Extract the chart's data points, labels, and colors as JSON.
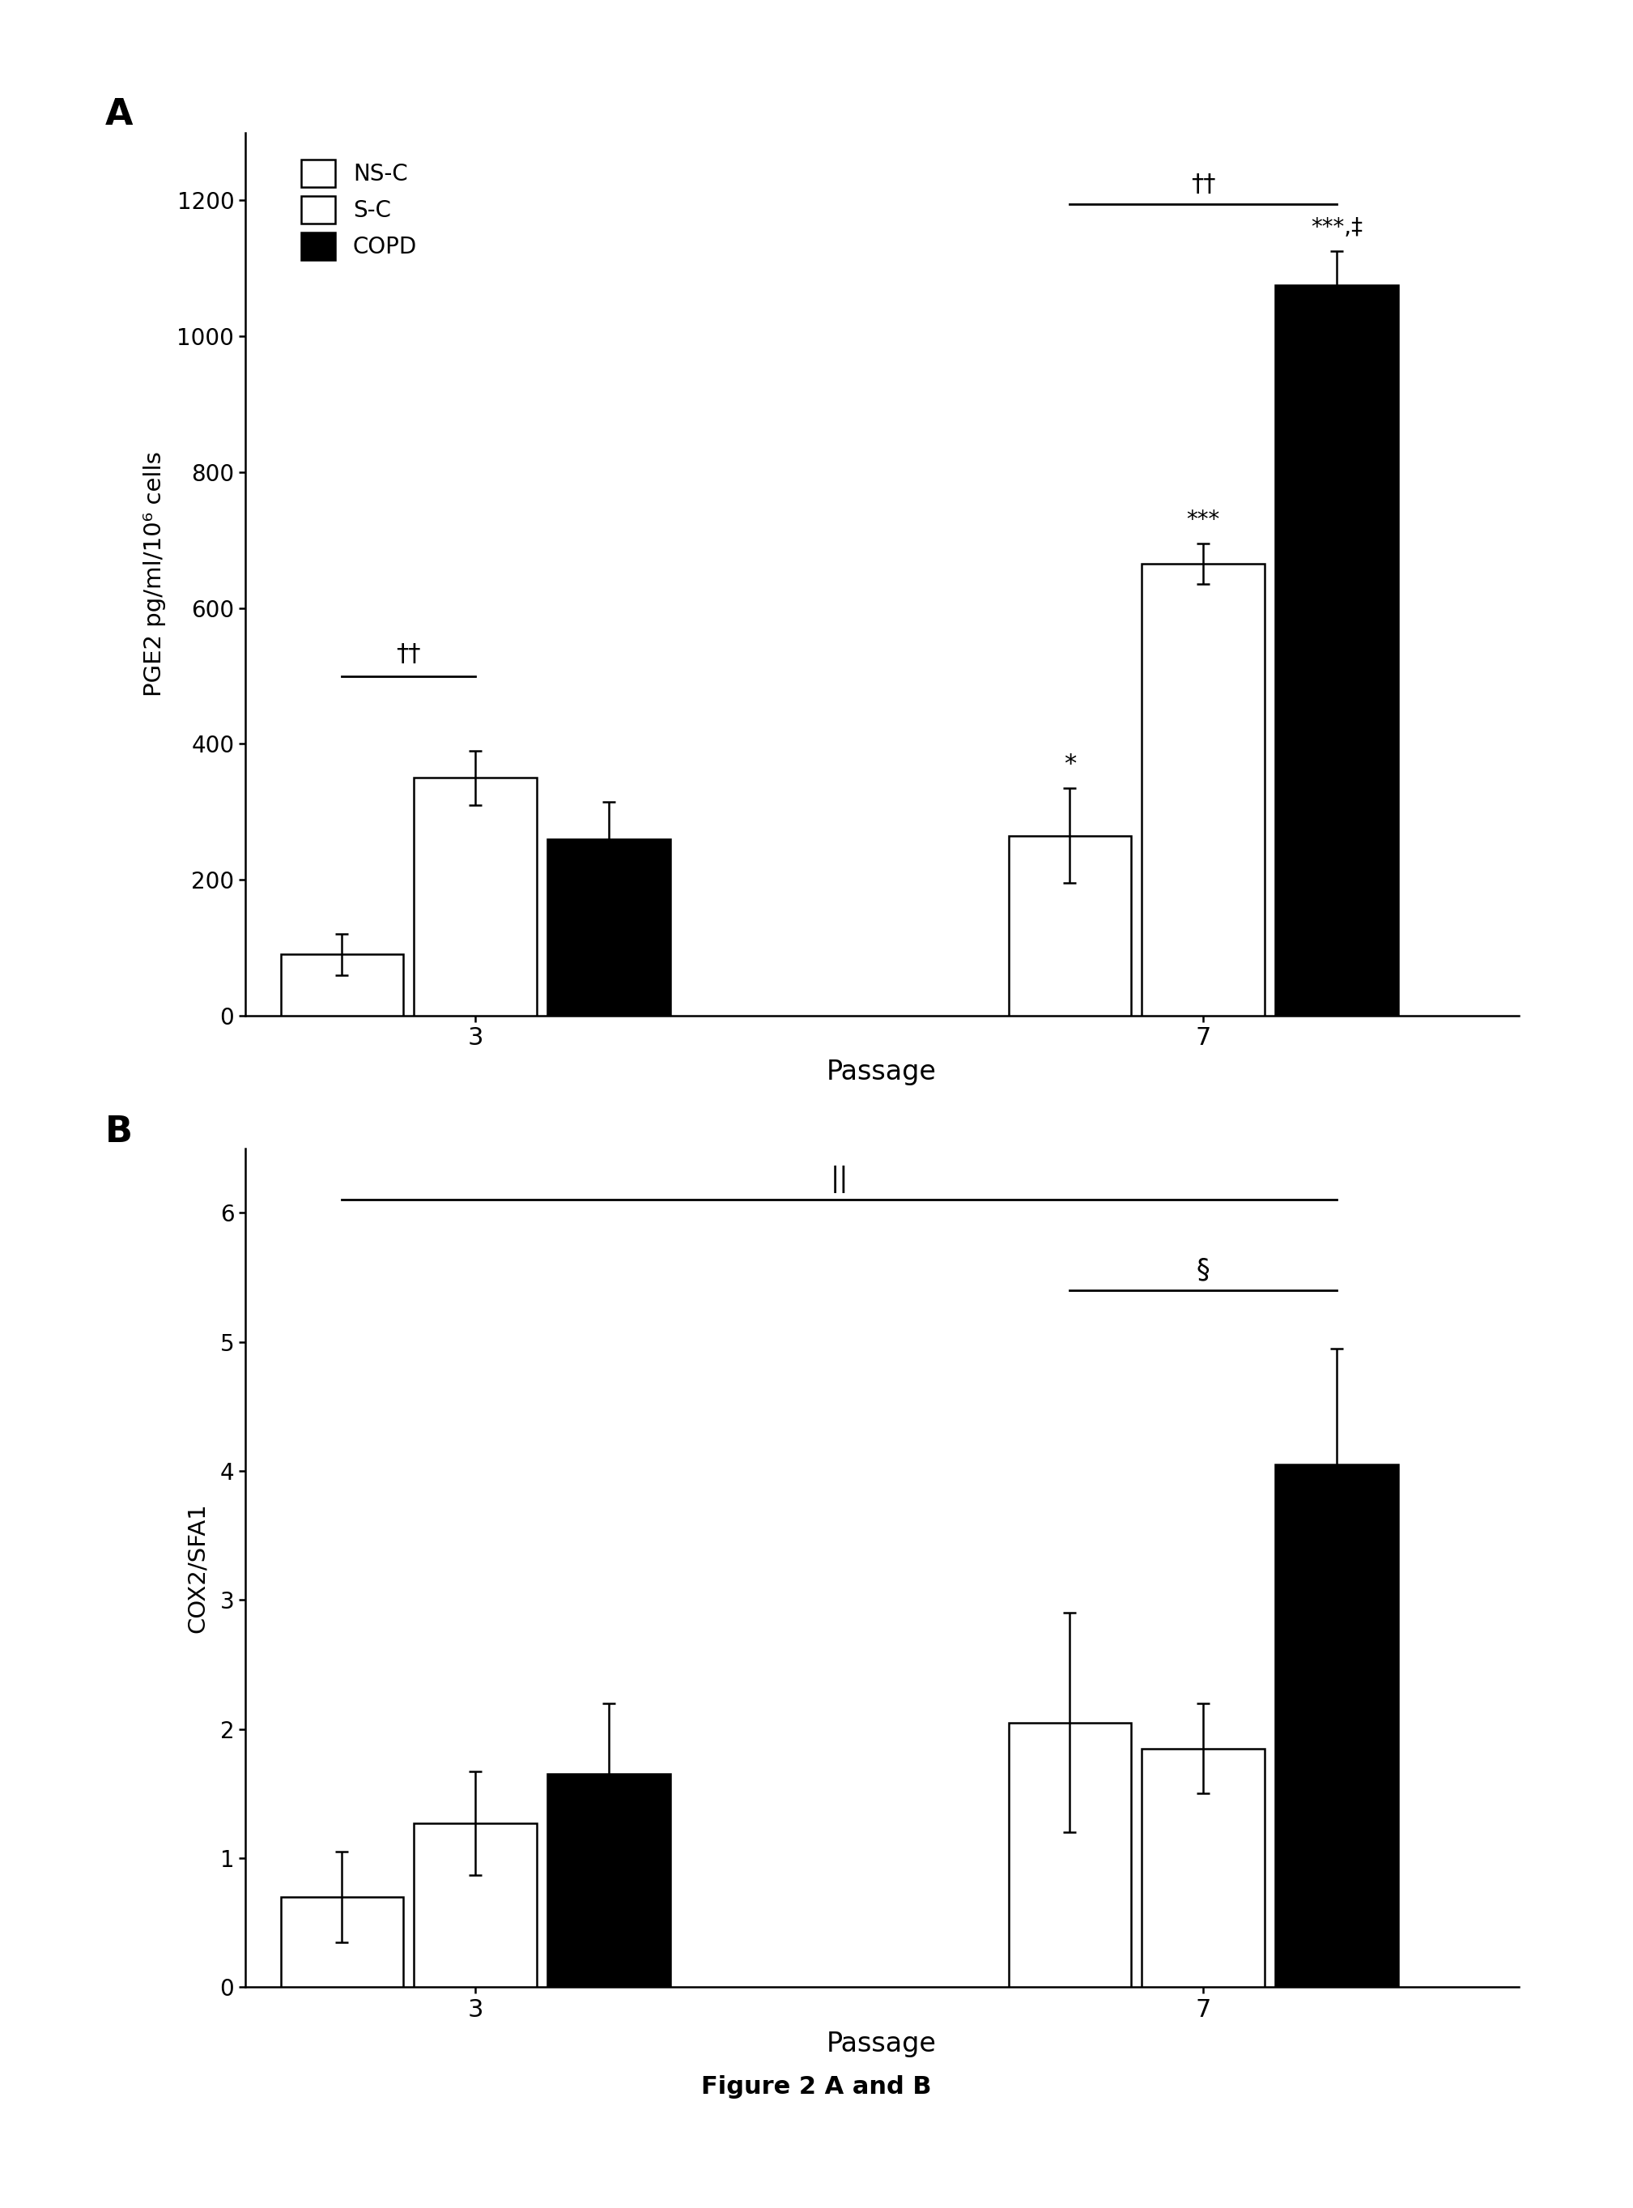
{
  "panel_A": {
    "title": "A",
    "groups": [
      "3",
      "7"
    ],
    "series": [
      "NS-C",
      "S-C",
      "COPD"
    ],
    "colors": [
      "white",
      "white",
      "black"
    ],
    "edge_colors": [
      "black",
      "black",
      "black"
    ],
    "hatches": [
      "",
      "",
      ""
    ],
    "values": [
      [
        90,
        350,
        260
      ],
      [
        265,
        665,
        1075
      ]
    ],
    "errors": [
      [
        30,
        40,
        55
      ],
      [
        70,
        30,
        50
      ]
    ],
    "ylabel": "PGE2 pg/ml/10⁶ cells",
    "xlabel": "Passage",
    "ylim": [
      0,
      1300
    ],
    "yticks": [
      0,
      200,
      400,
      600,
      800,
      1000,
      1200
    ],
    "bar_width": 0.22,
    "group_positions": [
      1.0,
      2.2
    ]
  },
  "panel_B": {
    "title": "B",
    "groups": [
      "3",
      "7"
    ],
    "series": [
      "NS-C",
      "S-C",
      "COPD"
    ],
    "colors": [
      "white",
      "white",
      "black"
    ],
    "edge_colors": [
      "black",
      "black",
      "black"
    ],
    "hatches": [
      "",
      "",
      ""
    ],
    "values": [
      [
        0.7,
        1.27,
        1.65
      ],
      [
        2.05,
        1.85,
        4.05
      ]
    ],
    "errors": [
      [
        0.35,
        0.4,
        0.55
      ],
      [
        0.85,
        0.35,
        0.9
      ]
    ],
    "ylabel": "COX2/SFA1",
    "xlabel": "Passage",
    "ylim": [
      0,
      6.5
    ],
    "yticks": [
      0,
      1,
      2,
      3,
      4,
      5,
      6
    ],
    "bar_width": 0.22,
    "group_positions": [
      1.0,
      2.2
    ]
  },
  "figure_caption": "Figure 2 A and B",
  "legend_A": {
    "entries": [
      "NS-C",
      "S-C",
      "COPD"
    ],
    "colors": [
      "white",
      "white",
      "black"
    ],
    "edge_colors": [
      "black",
      "black",
      "black"
    ],
    "hatches": [
      "",
      "",
      ""
    ]
  }
}
